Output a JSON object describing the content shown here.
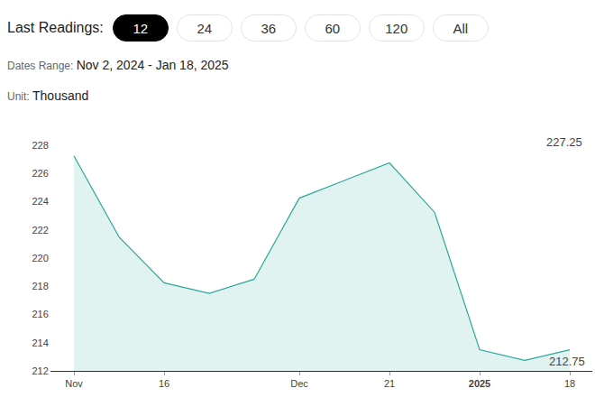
{
  "controls": {
    "label": "Last Readings:",
    "buttons": [
      "12",
      "24",
      "36",
      "60",
      "120",
      "All"
    ],
    "selected": "12"
  },
  "dates_range": {
    "label": "Dates Range:",
    "value": "Nov 2, 2024 - Jan 18, 2025"
  },
  "unit": {
    "label": "Unit:",
    "value": "Thousand"
  },
  "chart_data": {
    "type": "area",
    "categories": [
      "Nov",
      null,
      "16",
      null,
      null,
      "Dec",
      null,
      "21",
      null,
      "2025",
      null,
      "18"
    ],
    "values": [
      227.25,
      221.5,
      218.25,
      217.5,
      218.5,
      224.25,
      225.5,
      226.75,
      223.25,
      213.5,
      212.75,
      213.5
    ],
    "color": "#2ba89a",
    "ylim": [
      212,
      228
    ],
    "yticks": [
      212,
      214,
      216,
      218,
      220,
      222,
      224,
      226,
      228
    ],
    "grid": false,
    "annotations": [
      {
        "text": "227.25"
      },
      {
        "text": "212.75"
      }
    ]
  }
}
